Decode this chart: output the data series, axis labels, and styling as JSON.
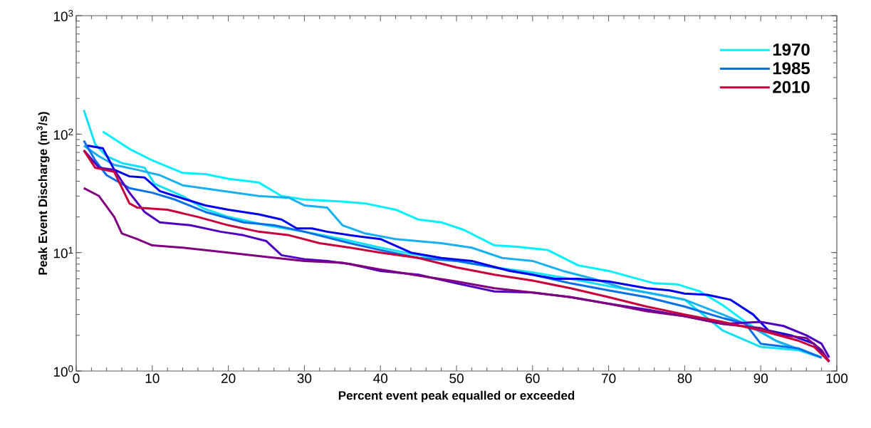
{
  "chart_data": {
    "type": "line",
    "xlabel": "Percent event peak equalled or exceeded",
    "ylabel": "Peak Event Discharge (m$^{3}$/s)",
    "xlim": [
      0,
      100
    ],
    "xticks": [
      0,
      10,
      20,
      30,
      40,
      50,
      60,
      70,
      80,
      90,
      100
    ],
    "ylim": [
      1,
      1000
    ],
    "log": true,
    "yticks": [
      {
        "value": 1,
        "label": "10$^{0}$"
      },
      {
        "value": 10,
        "label": "10$^{1}$"
      },
      {
        "value": 100,
        "label": "10$^{2}$"
      },
      {
        "value": 1000,
        "label": "10$^{3}$"
      }
    ],
    "legend": "top right",
    "marker": "none",
    "line_style": "solid",
    "grid": false,
    "series": [
      {
        "name": "1970",
        "color": "#00f0ff",
        "x": [
          3.5,
          7,
          10,
          14,
          17,
          20,
          24,
          27,
          30,
          35,
          38,
          42,
          45,
          48,
          51,
          55,
          58,
          62,
          66,
          70,
          76,
          79,
          82,
          85,
          88,
          92,
          95,
          98
        ],
        "values": [
          105,
          75,
          60,
          47,
          46,
          42,
          39,
          30,
          28,
          27,
          26,
          23,
          19,
          18,
          15.5,
          11.5,
          11.2,
          10.5,
          7.8,
          7,
          5.5,
          5.4,
          4.7,
          3.6,
          2.6,
          1.8,
          1.5,
          1.3
        ]
      },
      {
        "color": "#10e0f8",
        "x": [
          1,
          2.5,
          4,
          6,
          9,
          10.3,
          14,
          16.8,
          20,
          25,
          30,
          35,
          40,
          45,
          50,
          55,
          60,
          65,
          70,
          75,
          80,
          85,
          90,
          95,
          98
        ],
        "values": [
          160,
          82,
          65,
          57,
          52,
          38,
          30,
          23.5,
          20,
          17,
          15,
          13,
          11,
          9.5,
          8.5,
          7.5,
          6.8,
          6,
          5.2,
          4.6,
          4,
          2.2,
          1.6,
          1.5,
          1.3
        ]
      },
      {
        "color": "#18b0f0",
        "x": [
          1,
          3,
          5,
          8,
          11,
          14,
          18,
          24,
          28,
          30,
          33,
          35,
          38,
          42,
          48,
          52,
          56,
          60,
          64,
          68,
          72,
          80,
          85,
          88,
          92,
          98
        ],
        "values": [
          80,
          65,
          55,
          50,
          45,
          37,
          34,
          30,
          29,
          25,
          24,
          17,
          14.5,
          13,
          12,
          11,
          9,
          8.5,
          7,
          6,
          5,
          4,
          3,
          2.5,
          1.8,
          1.3
        ]
      },
      {
        "name": "1985",
        "color": "#0a70e8",
        "x": [
          1,
          2.5,
          4,
          7,
          10,
          13,
          17,
          22,
          26,
          30,
          36,
          40,
          45,
          50,
          55,
          60,
          65,
          70,
          75,
          80,
          85,
          88,
          90,
          95,
          98
        ],
        "values": [
          88,
          60,
          45,
          35,
          32,
          28,
          22,
          18,
          17,
          15,
          12,
          10.5,
          9,
          8.5,
          7.5,
          6.5,
          5.5,
          4.8,
          4.2,
          3.5,
          2.8,
          2.5,
          1.7,
          1.55,
          1.3
        ]
      },
      {
        "color": "#0000ee",
        "x": [
          1.5,
          3.5,
          5,
          7,
          9,
          11,
          13,
          17,
          20,
          24,
          27,
          29,
          31,
          33,
          36,
          40,
          44,
          48,
          52,
          57,
          60,
          63,
          66,
          70,
          75,
          78,
          80,
          83,
          86,
          89,
          91,
          94,
          97,
          99
        ],
        "values": [
          80,
          76,
          50,
          44,
          43,
          33,
          30,
          25,
          23,
          21,
          19,
          16,
          16,
          15,
          14,
          13,
          10,
          9,
          8.5,
          7,
          6.5,
          6,
          6,
          5.7,
          5,
          4.8,
          4.5,
          4.4,
          4,
          3,
          2.2,
          2,
          1.7,
          1.2
        ]
      },
      {
        "color": "#5000c0",
        "x": [
          1,
          3,
          5,
          7,
          9,
          11,
          15,
          19,
          22,
          25,
          27,
          30,
          33,
          36,
          40,
          45,
          50,
          55,
          60,
          65,
          70,
          75,
          80,
          85,
          90,
          93,
          96,
          98,
          99
        ],
        "values": [
          73,
          52,
          50,
          32,
          22,
          18,
          17,
          15,
          14,
          12.5,
          9.5,
          8.8,
          8.5,
          8,
          7,
          6.5,
          5.5,
          4.7,
          4.6,
          4.2,
          3.7,
          3.3,
          2.9,
          2.5,
          2.6,
          2.4,
          2,
          1.7,
          1.3
        ]
      },
      {
        "color": "#800080",
        "x": [
          1,
          3,
          5,
          6,
          8,
          10,
          14,
          20,
          25,
          30,
          35,
          40,
          45,
          50,
          55,
          60,
          65,
          70,
          75,
          80,
          85,
          90,
          93,
          96,
          98,
          99
        ],
        "values": [
          35,
          30,
          20,
          14.5,
          13,
          11.5,
          11,
          10,
          9.2,
          8.5,
          8.2,
          7.2,
          6.4,
          5.7,
          5,
          4.6,
          4.2,
          3.7,
          3.2,
          2.9,
          2.5,
          2.3,
          2,
          1.9,
          1.5,
          1.2
        ]
      },
      {
        "name": "2010",
        "color": "#c8003c",
        "x": [
          1,
          2.5,
          5,
          7,
          8,
          12,
          16,
          20,
          24,
          28,
          32,
          36,
          40,
          45,
          50,
          55,
          60,
          65,
          70,
          75,
          80,
          85,
          90,
          95,
          97,
          99
        ],
        "values": [
          73,
          52,
          48,
          26,
          24,
          23,
          20,
          17,
          15,
          14,
          12,
          11,
          10,
          9,
          7.5,
          6.5,
          5.8,
          5,
          4.2,
          3.5,
          3,
          2.6,
          2.2,
          1.8,
          1.6,
          1.2
        ]
      }
    ]
  }
}
